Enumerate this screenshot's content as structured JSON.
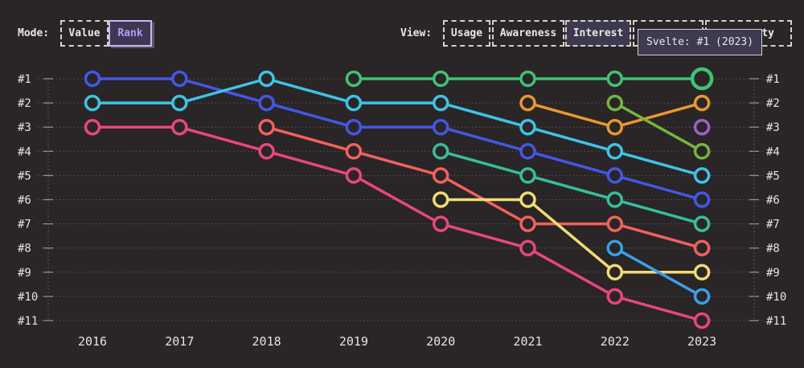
{
  "colors": {
    "background": "#2A2527",
    "text": "#ECE7DF",
    "grid": "#5C5753",
    "axis_tick": "#97918A",
    "accent_purple": "#B29BF7",
    "selected_view_bg": "#3D3950",
    "tooltip_bg": "#3E3A4F"
  },
  "header": {
    "mode_label": "Mode:",
    "mode_options": [
      {
        "label": "Value",
        "selected": false
      },
      {
        "label": "Rank",
        "selected": true
      }
    ],
    "view_label": "View:",
    "view_options": [
      {
        "label": "Usage",
        "selected": false
      },
      {
        "label": "Awareness",
        "selected": false
      },
      {
        "label": "Interest",
        "selected": true
      },
      {
        "label": "",
        "selected": false,
        "obscured": "hidden behind tooltip"
      },
      {
        "label": "ty",
        "selected": false,
        "obscured": "partially hidden behind tooltip"
      }
    ]
  },
  "tooltip": {
    "text": "Svelte: #1 (2023)"
  },
  "chart_data": {
    "type": "line",
    "variant": "bump-rank-chart",
    "x": [
      2016,
      2017,
      2018,
      2019,
      2020,
      2021,
      2022,
      2023
    ],
    "rank_labels": [
      "#1",
      "#2",
      "#3",
      "#4",
      "#5",
      "#6",
      "#7",
      "#8",
      "#9",
      "#10",
      "#11"
    ],
    "grid": "dotted-horizontal-per-rank",
    "legend": "none",
    "series": [
      {
        "name": "blue",
        "color": "#4457E5",
        "ranks": {
          "2016": 1,
          "2017": 1,
          "2018": 2,
          "2019": 3,
          "2020": 3,
          "2021": 4,
          "2022": 5,
          "2023": 6
        }
      },
      {
        "name": "cyan",
        "color": "#3EC4E4",
        "ranks": {
          "2016": 2,
          "2017": 2,
          "2018": 1,
          "2019": 2,
          "2020": 2,
          "2021": 3,
          "2022": 4,
          "2023": 5
        }
      },
      {
        "name": "magenta",
        "color": "#E8477E",
        "ranks": {
          "2016": 3,
          "2017": 3,
          "2018": 4,
          "2019": 5,
          "2020": 7,
          "2021": 8,
          "2022": 10,
          "2023": 11
        }
      },
      {
        "name": "coral",
        "color": "#F2615C",
        "ranks": {
          "2018": 3,
          "2019": 4,
          "2020": 5,
          "2021": 7,
          "2022": 7,
          "2023": 8
        }
      },
      {
        "name": "svelte",
        "color": "#3FC375",
        "ranks": {
          "2019": 1,
          "2020": 1,
          "2021": 1,
          "2022": 1,
          "2023": 1
        },
        "highlight_year": 2023
      },
      {
        "name": "teal",
        "color": "#38BD9C",
        "ranks": {
          "2020": 4,
          "2021": 5,
          "2022": 6,
          "2023": 7
        }
      },
      {
        "name": "yellow",
        "color": "#F0DC72",
        "ranks": {
          "2020": 6,
          "2021": 6,
          "2022": 9,
          "2023": 9
        }
      },
      {
        "name": "amber",
        "color": "#E9992F",
        "ranks": {
          "2021": 2,
          "2022": 3,
          "2023": 2
        }
      },
      {
        "name": "lime",
        "color": "#72B63E",
        "ranks": {
          "2022": 2,
          "2023": 4
        }
      },
      {
        "name": "sky",
        "color": "#3AA0E8",
        "ranks": {
          "2022": 8,
          "2023": 10
        }
      },
      {
        "name": "purple",
        "color": "#9A63C8",
        "ranks": {
          "2023": 3
        }
      }
    ]
  }
}
